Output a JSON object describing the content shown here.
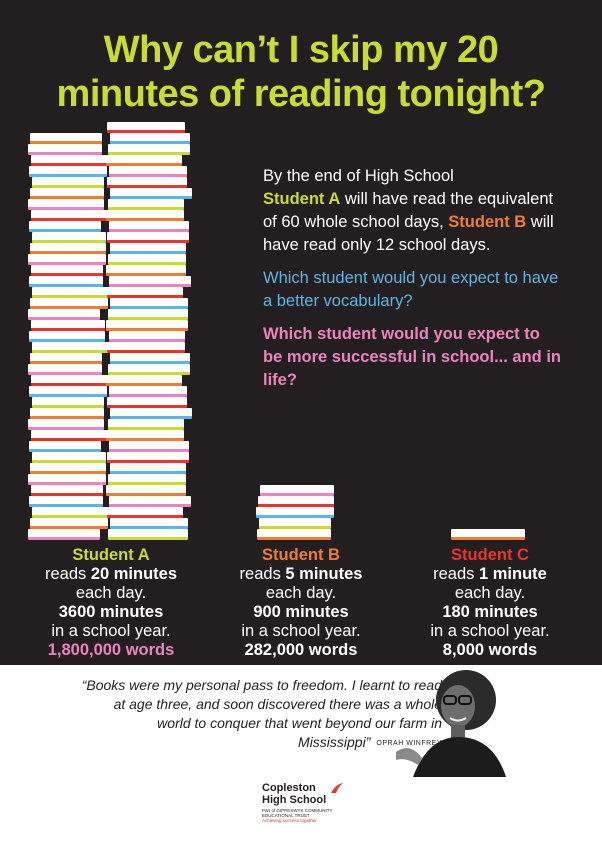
{
  "title": {
    "line1": "Why can’t I skip my 20",
    "line2": "minutes of reading tonight?"
  },
  "facts": {
    "intro": "By the end of High School",
    "student_a": "Student A",
    "a_text": " will have read the equivalent of 60 whole school days, ",
    "student_b": "Student B",
    "b_text": " will have read only 12 school days.",
    "question_vocab": "Which student would you expect to have a better vocabulary?",
    "question_success": "Which student would you expect to be more successful in school...  and in life?"
  },
  "students": [
    {
      "name": "Student A",
      "reads": "reads ",
      "duration": "20 minutes",
      "per_day": "each day.",
      "minutes": "3600 minutes",
      "per_year": "in a school year.",
      "words": "1,800,000 words",
      "color": "#c8dc32",
      "words_color": "#ec82bf"
    },
    {
      "name": "Student B",
      "reads": "reads ",
      "duration": "5 minutes",
      "per_day": "each day.",
      "minutes": "900 minutes",
      "per_year": "in a school year.",
      "words": "282,000 words",
      "color": "#ef7d33",
      "words_color": "#ffffff"
    },
    {
      "name": "Student C",
      "reads": "reads ",
      "duration": "1 minute",
      "per_day": "each day.",
      "minutes": "180 minutes",
      "per_year": "in a school year.",
      "words": "8,000 words",
      "color": "#e8352e",
      "words_color": "#ffffff"
    }
  ],
  "quote": {
    "text": "“Books were my personal pass to freedom. I learnt to read at age three, and soon discovered there was a whole world to conquer that went beyond our farm in Mississippi”",
    "author": "OPRAH WINFREY"
  },
  "logo": {
    "name_line1": "Copleston",
    "name_line2": "High School",
    "trust": "Part of GIPPESWYK COMMUNITY EDUCATIONAL TRUST",
    "tagline": "Achieving success together"
  },
  "colors": {
    "background": "#231f20",
    "title": "#c8dc32",
    "green": "#c8dc32",
    "orange": "#ef7d33",
    "blue": "#5bb5e6",
    "pink": "#ec82bf",
    "red": "#e8352e"
  }
}
